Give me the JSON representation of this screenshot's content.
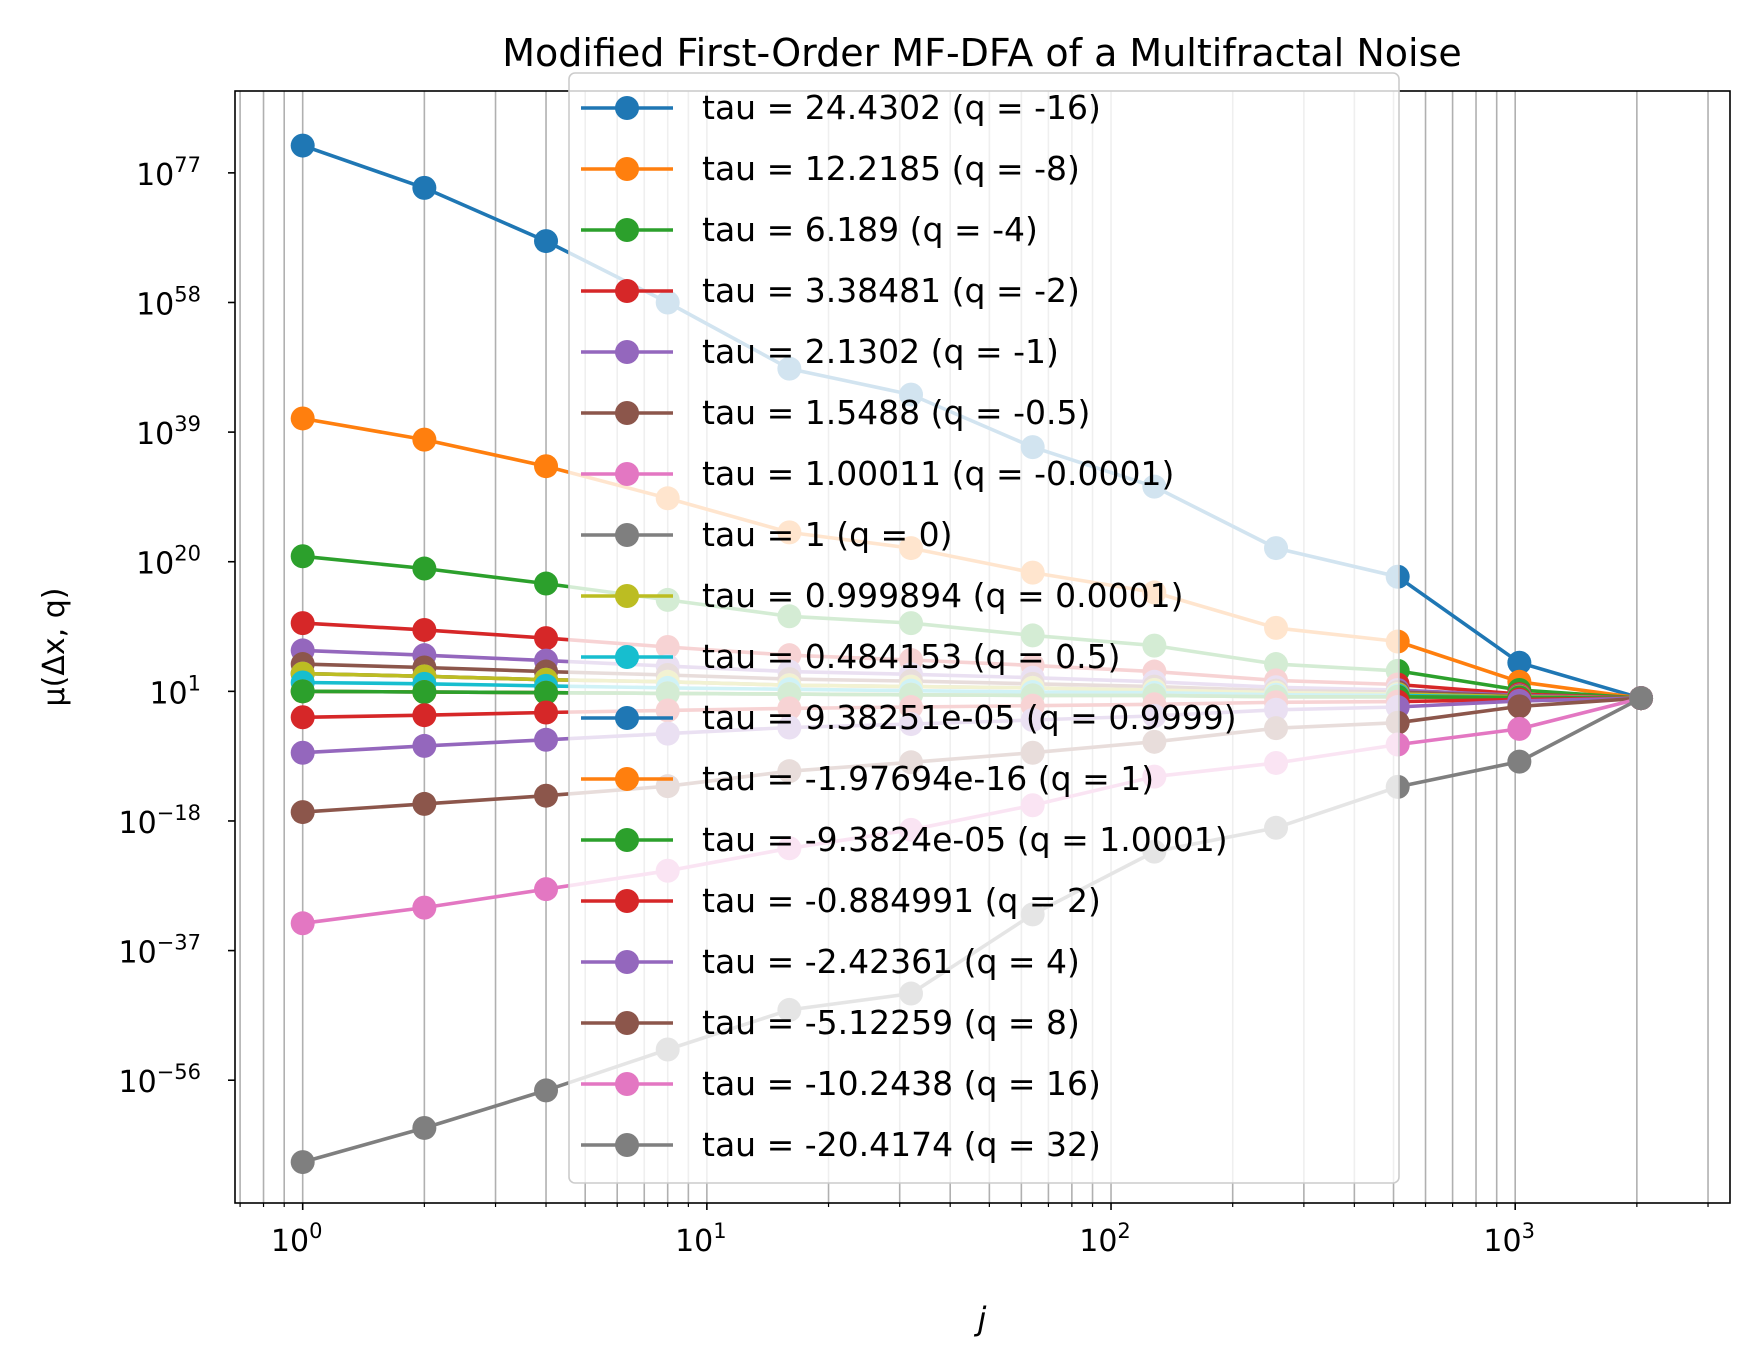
{
  "chart_data": {
    "type": "line",
    "title": "Modified First-Order MF-DFA of a Multifractal Noise",
    "xlabel": "j",
    "ylabel": "μ(Δx, q)",
    "x_scale": "log",
    "y_scale": "log",
    "xlim": [
      0.68,
      3400
    ],
    "ylim_log10": [
      -74,
      89
    ],
    "x_ticks": [
      {
        "value": 1,
        "base": "10",
        "exp": "0"
      },
      {
        "value": 10,
        "base": "10",
        "exp": "1"
      },
      {
        "value": 100,
        "base": "10",
        "exp": "2"
      },
      {
        "value": 1000,
        "base": "10",
        "exp": "3"
      }
    ],
    "y_ticks": [
      {
        "log10": 77,
        "base": "10",
        "exp": "77"
      },
      {
        "log10": 58,
        "base": "10",
        "exp": "58"
      },
      {
        "log10": 39,
        "base": "10",
        "exp": "39"
      },
      {
        "log10": 20,
        "base": "10",
        "exp": "20"
      },
      {
        "log10": 1,
        "base": "10",
        "exp": "1"
      },
      {
        "log10": -18,
        "base": "10",
        "exp": "−18"
      },
      {
        "log10": -37,
        "base": "10",
        "exp": "−37"
      },
      {
        "log10": -56,
        "base": "10",
        "exp": "−56"
      }
    ],
    "grid": "x-major-and-minor",
    "legend_position": "upper-center",
    "x": [
      1,
      2,
      4,
      8,
      16,
      32,
      64,
      128,
      256,
      512,
      1024,
      2048
    ],
    "series": [
      {
        "name": "tau = 24.4302 (q = -16)",
        "color": "#1f77b4",
        "log10_values": [
          81.0,
          74.8,
          67.0,
          58.0,
          48.3,
          44.5,
          36.8,
          31.0,
          22.0,
          17.8,
          5.2,
          0.0
        ]
      },
      {
        "name": "tau = 12.2185 (q = -8)",
        "color": "#ff7f0e",
        "log10_values": [
          41.0,
          37.9,
          34.0,
          29.3,
          24.3,
          22.0,
          18.4,
          15.5,
          10.3,
          8.3,
          2.4,
          0.0
        ]
      },
      {
        "name": "tau = 6.189 (q = -4)",
        "color": "#2ca02c",
        "log10_values": [
          20.8,
          19.0,
          16.8,
          14.4,
          12.0,
          11.0,
          9.2,
          7.7,
          5.0,
          4.0,
          1.2,
          0.0
        ]
      },
      {
        "name": "tau = 3.38481 (q = -2)",
        "color": "#d62728",
        "log10_values": [
          11.0,
          10.0,
          8.8,
          7.5,
          6.3,
          5.6,
          4.8,
          3.9,
          2.6,
          2.0,
          0.6,
          0.0
        ]
      },
      {
        "name": "tau = 2.1302 (q = -1)",
        "color": "#9467bd",
        "log10_values": [
          7.0,
          6.3,
          5.5,
          4.7,
          3.9,
          3.5,
          3.0,
          2.4,
          1.6,
          1.2,
          0.4,
          0.0
        ]
      },
      {
        "name": "tau = 1.5488 (q = -0.5)",
        "color": "#8c564b",
        "log10_values": [
          5.0,
          4.5,
          3.9,
          3.4,
          2.8,
          2.5,
          2.1,
          1.7,
          1.1,
          0.9,
          0.3,
          0.0
        ]
      },
      {
        "name": "tau = 1.00011 (q = -0.0001)",
        "color": "#e377c2",
        "log10_values": [
          3.6,
          3.2,
          2.7,
          2.4,
          1.9,
          1.7,
          1.5,
          1.2,
          0.8,
          0.6,
          0.2,
          0.0
        ]
      },
      {
        "name": "tau = 1 (q = 0)",
        "color": "#7f7f7f",
        "log10_values": [
          3.6,
          3.2,
          2.7,
          2.4,
          1.9,
          1.7,
          1.5,
          1.2,
          0.8,
          0.6,
          0.2,
          0.0
        ]
      },
      {
        "name": "tau = 0.999894 (q = 0.0001)",
        "color": "#bcbd22",
        "log10_values": [
          3.6,
          3.2,
          2.7,
          2.4,
          1.9,
          1.7,
          1.5,
          1.2,
          0.8,
          0.6,
          0.2,
          0.0
        ]
      },
      {
        "name": "tau = 0.484153 (q = 0.5)",
        "color": "#17becf",
        "log10_values": [
          2.3,
          2.1,
          1.8,
          1.5,
          1.3,
          1.1,
          0.9,
          0.8,
          0.5,
          0.4,
          0.1,
          0.0
        ]
      },
      {
        "name": "tau = 9.38251e-05 (q = 0.9999)",
        "color": "#1f77b4",
        "log10_values": [
          1.0,
          0.9,
          0.8,
          0.7,
          0.6,
          0.5,
          0.4,
          0.4,
          0.2,
          0.2,
          0.1,
          0.0
        ]
      },
      {
        "name": "tau = -1.97694e-16 (q = 1)",
        "color": "#ff7f0e",
        "log10_values": [
          1.0,
          0.9,
          0.8,
          0.7,
          0.6,
          0.5,
          0.4,
          0.4,
          0.2,
          0.2,
          0.1,
          0.0
        ]
      },
      {
        "name": "tau = -9.3824e-05 (q = 1.0001)",
        "color": "#2ca02c",
        "log10_values": [
          1.0,
          0.9,
          0.8,
          0.7,
          0.6,
          0.5,
          0.4,
          0.4,
          0.2,
          0.2,
          0.1,
          0.0
        ]
      },
      {
        "name": "tau = -0.884991 (q = 2)",
        "color": "#d62728",
        "log10_values": [
          -2.8,
          -2.5,
          -2.1,
          -1.8,
          -1.5,
          -1.3,
          -1.1,
          -0.9,
          -0.6,
          -0.5,
          -0.2,
          0.0
        ]
      },
      {
        "name": "tau = -2.42361 (q = 4)",
        "color": "#9467bd",
        "log10_values": [
          -8.0,
          -7.0,
          -6.1,
          -5.2,
          -4.3,
          -3.8,
          -3.2,
          -2.6,
          -1.7,
          -1.3,
          -0.4,
          0.0
        ]
      },
      {
        "name": "tau = -5.12259 (q = 8)",
        "color": "#8c564b",
        "log10_values": [
          -16.7,
          -15.5,
          -14.3,
          -12.9,
          -10.7,
          -9.4,
          -8.0,
          -6.4,
          -4.4,
          -3.6,
          -1.2,
          0.0
        ]
      },
      {
        "name": "tau = -10.2438 (q = 16)",
        "color": "#e377c2",
        "log10_values": [
          -33.0,
          -30.7,
          -28.0,
          -25.3,
          -22.0,
          -19.3,
          -15.7,
          -11.5,
          -9.5,
          -6.8,
          -4.5,
          0.0
        ]
      },
      {
        "name": "tau = -20.4174 (q = 32)",
        "color": "#7f7f7f",
        "log10_values": [
          -68.0,
          -63.0,
          -57.5,
          -51.5,
          -45.7,
          -43.3,
          -31.7,
          -22.5,
          -19.0,
          -13.0,
          -9.3,
          0.0
        ]
      }
    ]
  }
}
